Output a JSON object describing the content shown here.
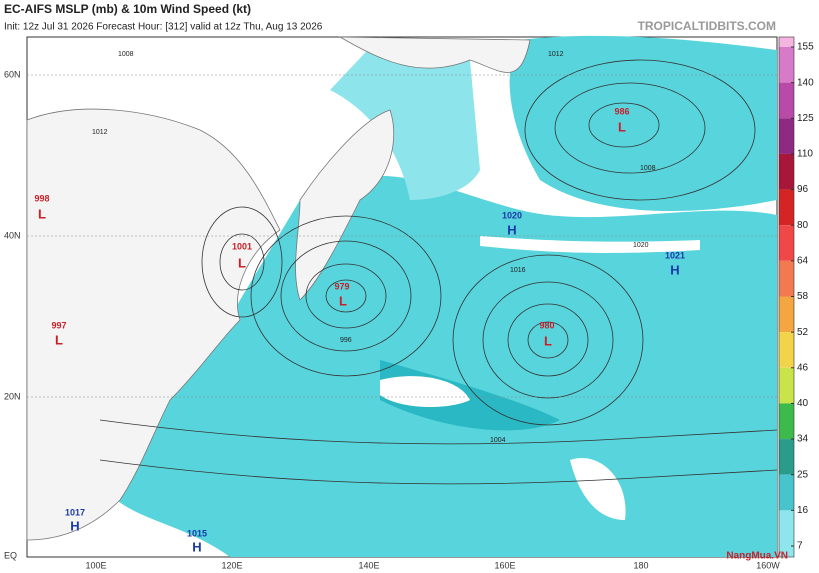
{
  "header": {
    "title": "EC-AIFS MSLP (mb) & 10m Wind Speed (kt)",
    "subtitle": "Init: 12z Jul 31 2026   Forecast Hour: [312]   valid at 12z Thu, Aug 13 2026",
    "source": "TROPICALTIDBITS.COM"
  },
  "axes": {
    "lat": [
      "60N",
      "40N",
      "20N",
      "EQ"
    ],
    "lon": [
      "100E",
      "120E",
      "140E",
      "160E",
      "180",
      "160W"
    ]
  },
  "centers": [
    {
      "type": "L",
      "value": "998"
    },
    {
      "type": "L",
      "value": "1001"
    },
    {
      "type": "L",
      "value": "979"
    },
    {
      "type": "L",
      "value": "980"
    },
    {
      "type": "L",
      "value": "986"
    },
    {
      "type": "L",
      "value": "997"
    },
    {
      "type": "H",
      "value": "1020"
    },
    {
      "type": "H",
      "value": "1021"
    },
    {
      "type": "H",
      "value": "1017"
    },
    {
      "type": "H",
      "value": "1015"
    }
  ],
  "isobar_labels": [
    "1008",
    "1012",
    "1012",
    "1008",
    "996",
    "1016",
    "1020",
    "1004"
  ],
  "colorbar": {
    "ticks": [
      155,
      140,
      125,
      110,
      96,
      80,
      64,
      58,
      52,
      46,
      40,
      34,
      25,
      16,
      7
    ],
    "colors": [
      "#f4b6e0",
      "#d77ac8",
      "#b84aa8",
      "#8e2a82",
      "#a8163a",
      "#d42424",
      "#f04848",
      "#f27a50",
      "#f4a640",
      "#f2d44a",
      "#c8e44a",
      "#3cba4c",
      "#2a9c8c",
      "#48c4cc",
      "#8ee6ec"
    ]
  },
  "watermark": "NangMua.VN"
}
